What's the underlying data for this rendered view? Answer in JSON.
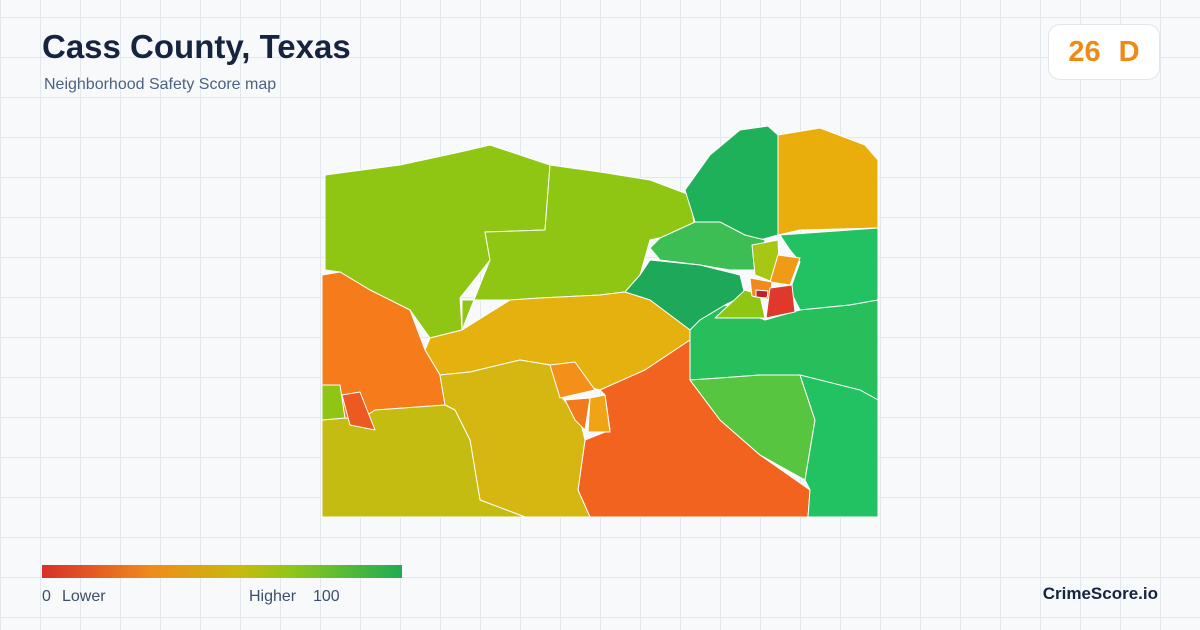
{
  "header": {
    "title": "Cass County, Texas",
    "subtitle": "Neighborhood Safety Score map"
  },
  "score": {
    "value": 26,
    "grade": "D"
  },
  "legend": {
    "min": 0,
    "min_label": "Lower",
    "max_label": "Higher",
    "max": 100
  },
  "brand": "CrimeScore.io"
}
